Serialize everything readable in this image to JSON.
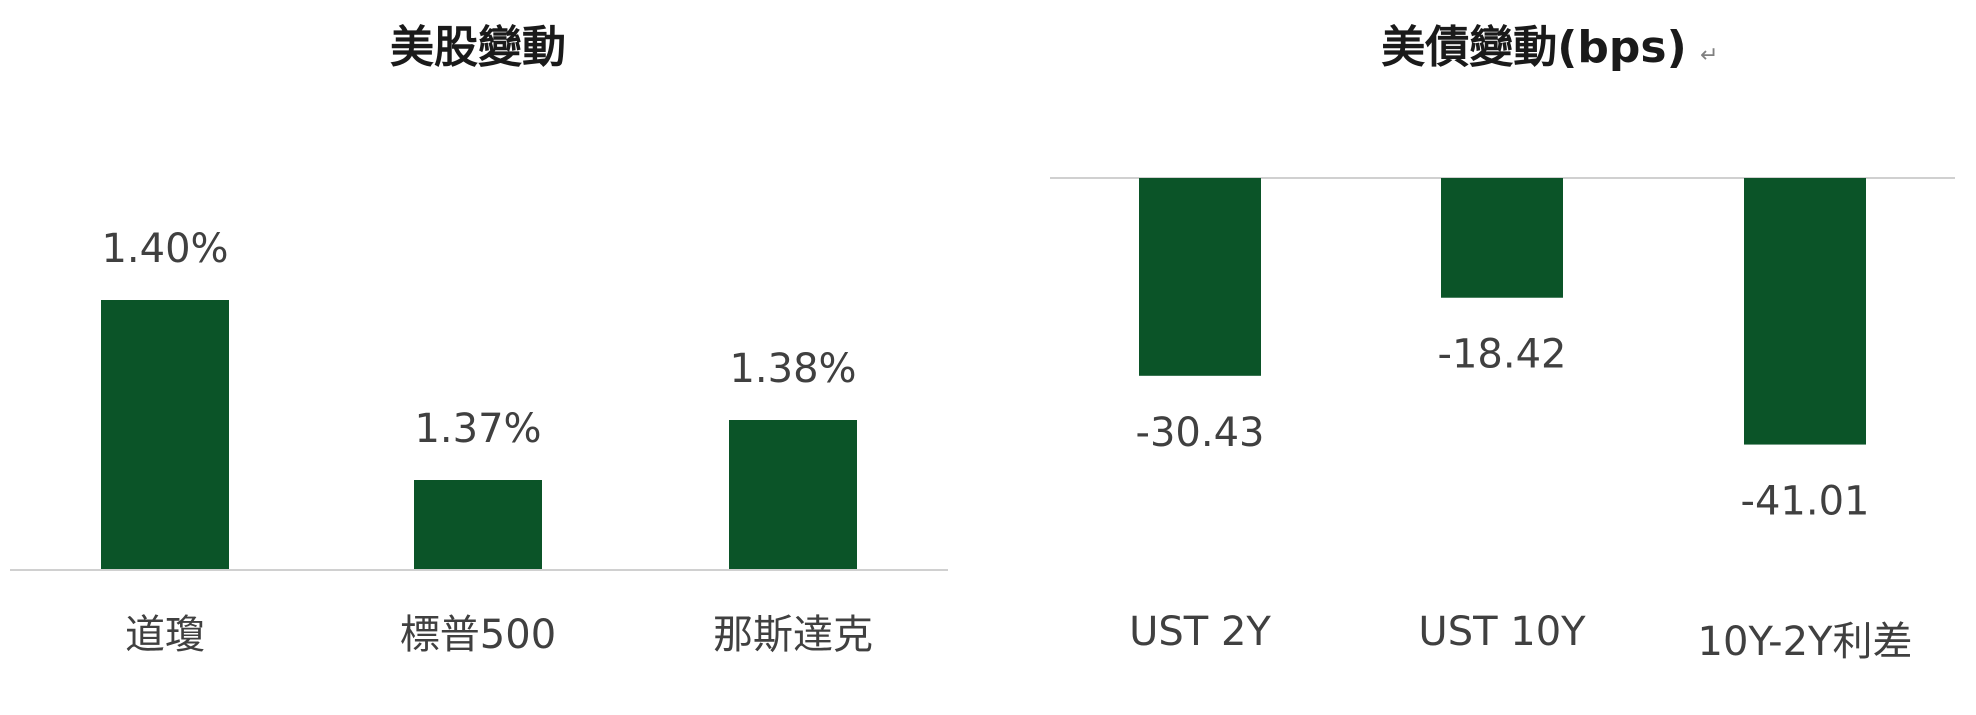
{
  "chart_data": [
    {
      "type": "bar",
      "title": "美股變動",
      "categories": [
        "道瓊",
        "標普500",
        "那斯達克"
      ],
      "values": [
        1.4,
        1.37,
        1.38
      ],
      "value_labels": [
        "1.40%",
        "1.37%",
        "1.38%"
      ],
      "xlabel": "",
      "ylabel": "",
      "grid": false,
      "legend": "none",
      "color": "#0b5428"
    },
    {
      "type": "bar",
      "title": "美債變動(bps)",
      "categories": [
        "UST 2Y",
        "UST 10Y",
        "10Y-2Y利差"
      ],
      "values": [
        -30.43,
        -18.42,
        -41.01
      ],
      "value_labels": [
        "-30.43",
        "-18.42",
        "-41.01"
      ],
      "xlabel": "",
      "ylabel": "",
      "grid": false,
      "legend": "none",
      "color": "#0b5428"
    }
  ]
}
